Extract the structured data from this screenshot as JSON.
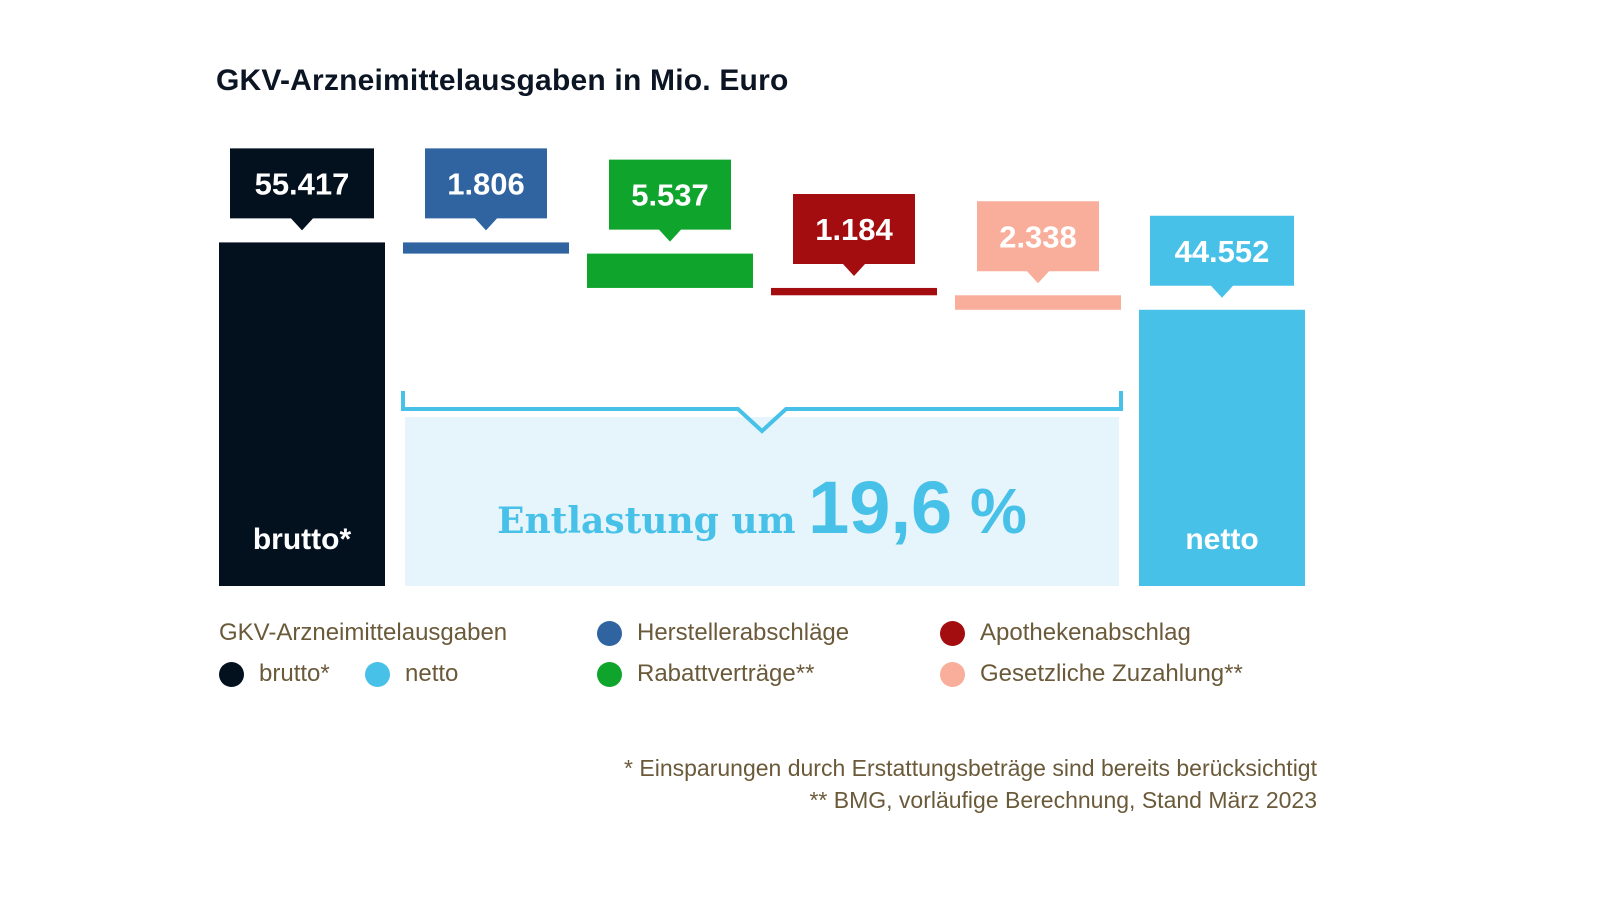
{
  "title": "GKV-Arzneimittelausgaben in Mio. Euro",
  "chart_data": {
    "type": "bar",
    "title": "GKV-Arzneimittelausgaben in Mio. Euro",
    "categories": [
      "brutto*",
      "Herstellerabschläge",
      "Rabattverträge**",
      "Apothekenabschlag",
      "Gesetzliche Zuzahlung**",
      "netto"
    ],
    "values": [
      55417,
      1806,
      5537,
      1184,
      2338,
      44552
    ],
    "value_labels": [
      "55.417",
      "1.806",
      "5.537",
      "1.184",
      "2.338",
      "44.552"
    ],
    "bar_labels": [
      "brutto*",
      "",
      "",
      "",
      "",
      "netto"
    ],
    "colors": [
      "#03101e",
      "#2f64a0",
      "#0fa52c",
      "#a30d10",
      "#f8ae9a",
      "#48c1e8"
    ],
    "annotation": {
      "prefix": "Entlastung um",
      "value": "19,6",
      "unit": "%"
    }
  },
  "legend": {
    "heading": "GKV-Arzneimittelausgaben",
    "items": [
      {
        "label": "brutto*",
        "color": "#03101e"
      },
      {
        "label": "netto",
        "color": "#48c1e8"
      },
      {
        "label": "Herstellerabschläge",
        "color": "#2f64a0"
      },
      {
        "label": "Rabattverträge**",
        "color": "#0fa52c"
      },
      {
        "label": "Apothekenabschlag",
        "color": "#a30d10"
      },
      {
        "label": "Gesetzliche Zuzahlung**",
        "color": "#f8ae9a"
      }
    ]
  },
  "footnotes": [
    "* Einsparungen durch Erstattungsbeträge sind bereits berücksichtigt",
    "** BMG, vorläufige Berechnung, Stand März 2023"
  ]
}
